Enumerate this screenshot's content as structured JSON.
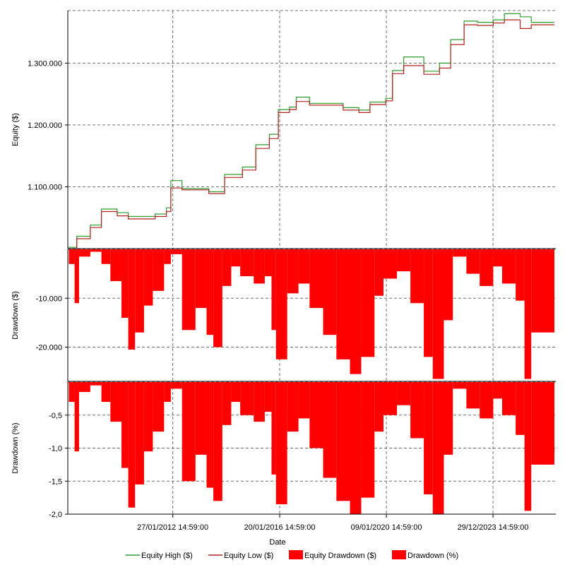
{
  "chart_data": {
    "type": "line",
    "colors": {
      "equity_high": "#2e9b2e",
      "equity_low": "#b22222",
      "drawdown_fill": "#ff0000",
      "grid": "#707070"
    },
    "x_axis": {
      "label": "Date",
      "range": [
        "2008-03-01",
        "2026-05-01"
      ],
      "ticks": [
        {
          "date": "2012-01-27",
          "label": "27/01/2012 14:59:00"
        },
        {
          "date": "2016-01-20",
          "label": "20/01/2016 14:59:00"
        },
        {
          "date": "2020-01-09",
          "label": "09/01/2020 14:59:00"
        },
        {
          "date": "2023-12-29",
          "label": "29/12/2023 14:59:00"
        }
      ]
    },
    "panels": [
      {
        "name": "equity",
        "ylabel": "Equity ($)",
        "ylim": [
          1000000,
          1385000
        ],
        "yticks": [
          {
            "value": 1100000,
            "label": "1.100.000"
          },
          {
            "value": 1200000,
            "label": "1.200.000"
          },
          {
            "value": 1300000,
            "label": "1.300.000"
          }
        ],
        "series": [
          {
            "name": "Equity High ($)",
            "points": [
              [
                "2008-03-10",
                1002000
              ],
              [
                "2008-07-01",
                1020000
              ],
              [
                "2009-01-01",
                1038000
              ],
              [
                "2009-06-01",
                1064000
              ],
              [
                "2010-01-01",
                1058000
              ],
              [
                "2010-06-01",
                1052000
              ],
              [
                "2011-06-01",
                1056000
              ],
              [
                "2011-11-01",
                1066000
              ],
              [
                "2012-01-01",
                1110000
              ],
              [
                "2012-06-01",
                1097000
              ],
              [
                "2013-06-01",
                1092000
              ],
              [
                "2014-01-01",
                1120000
              ],
              [
                "2014-09-01",
                1132000
              ],
              [
                "2015-03-01",
                1168000
              ],
              [
                "2015-09-01",
                1185000
              ],
              [
                "2016-01-01",
                1225000
              ],
              [
                "2016-06-01",
                1229000
              ],
              [
                "2016-09-01",
                1245000
              ],
              [
                "2017-03-01",
                1235000
              ],
              [
                "2018-06-01",
                1228000
              ],
              [
                "2019-01-01",
                1224000
              ],
              [
                "2019-06-01",
                1237000
              ],
              [
                "2020-01-01",
                1243000
              ],
              [
                "2020-04-01",
                1288000
              ],
              [
                "2020-09-01",
                1310000
              ],
              [
                "2021-06-01",
                1287000
              ],
              [
                "2022-01-01",
                1300000
              ],
              [
                "2022-06-01",
                1338000
              ],
              [
                "2022-12-01",
                1368000
              ],
              [
                "2023-06-01",
                1366000
              ],
              [
                "2024-01-01",
                1370000
              ],
              [
                "2024-06-01",
                1380000
              ],
              [
                "2025-01-01",
                1375000
              ],
              [
                "2025-06-01",
                1366000
              ]
            ]
          },
          {
            "name": "Equity Low ($)",
            "points": [
              [
                "2008-03-10",
                1000000
              ],
              [
                "2008-07-01",
                1016000
              ],
              [
                "2009-01-01",
                1034000
              ],
              [
                "2009-06-01",
                1060000
              ],
              [
                "2010-01-01",
                1053000
              ],
              [
                "2010-06-01",
                1048000
              ],
              [
                "2011-06-01",
                1052000
              ],
              [
                "2011-11-01",
                1060000
              ],
              [
                "2012-01-01",
                1098000
              ],
              [
                "2012-06-01",
                1095000
              ],
              [
                "2013-06-01",
                1089000
              ],
              [
                "2014-01-01",
                1115000
              ],
              [
                "2014-09-01",
                1127000
              ],
              [
                "2015-03-01",
                1162000
              ],
              [
                "2015-09-01",
                1178000
              ],
              [
                "2016-01-01",
                1220000
              ],
              [
                "2016-06-01",
                1225000
              ],
              [
                "2016-09-01",
                1238000
              ],
              [
                "2017-03-01",
                1232000
              ],
              [
                "2018-06-01",
                1224000
              ],
              [
                "2019-01-01",
                1220000
              ],
              [
                "2019-06-01",
                1233000
              ],
              [
                "2020-01-01",
                1239000
              ],
              [
                "2020-04-01",
                1283000
              ],
              [
                "2020-09-01",
                1296000
              ],
              [
                "2021-06-01",
                1282000
              ],
              [
                "2022-01-01",
                1292000
              ],
              [
                "2022-06-01",
                1330000
              ],
              [
                "2022-12-01",
                1362000
              ],
              [
                "2023-06-01",
                1361000
              ],
              [
                "2024-01-01",
                1365000
              ],
              [
                "2024-06-01",
                1370000
              ],
              [
                "2025-01-01",
                1356000
              ],
              [
                "2025-06-01",
                1362000
              ]
            ]
          }
        ]
      },
      {
        "name": "drawdown_usd",
        "ylabel": "Drawdown ($)",
        "ylim": [
          -27000,
          0
        ],
        "yticks": [
          {
            "value": -10000,
            "label": "-10.000"
          },
          {
            "value": -20000,
            "label": "-20.000"
          }
        ],
        "series": [
          {
            "name": "Equity Drawdown ($)",
            "points": [
              [
                "2008-03-15",
                -3000
              ],
              [
                "2008-06-01",
                -11000
              ],
              [
                "2008-08-01",
                -1500
              ],
              [
                "2009-01-01",
                -500
              ],
              [
                "2009-06-01",
                -3000
              ],
              [
                "2009-10-01",
                -6500
              ],
              [
                "2010-03-01",
                -14000
              ],
              [
                "2010-06-01",
                -20500
              ],
              [
                "2010-09-01",
                -17000
              ],
              [
                "2011-01-01",
                -11500
              ],
              [
                "2011-05-01",
                -8500
              ],
              [
                "2011-10-01",
                -3000
              ],
              [
                "2012-01-01",
                -1000
              ],
              [
                "2012-06-01",
                -16500
              ],
              [
                "2012-12-01",
                -12000
              ],
              [
                "2013-05-01",
                -17500
              ],
              [
                "2013-08-01",
                -20000
              ],
              [
                "2013-12-01",
                -7500
              ],
              [
                "2014-04-01",
                -3500
              ],
              [
                "2014-08-01",
                -5500
              ],
              [
                "2015-02-01",
                -7000
              ],
              [
                "2015-07-01",
                -5500
              ],
              [
                "2015-10-01",
                -16500
              ],
              [
                "2015-12-01",
                -22500
              ],
              [
                "2016-05-01",
                -9000
              ],
              [
                "2016-10-01",
                -7000
              ],
              [
                "2017-03-01",
                -12000
              ],
              [
                "2017-09-01",
                -17500
              ],
              [
                "2018-03-01",
                -22500
              ],
              [
                "2018-09-01",
                -25500
              ],
              [
                "2019-02-01",
                -22000
              ],
              [
                "2019-08-01",
                -9500
              ],
              [
                "2019-12-01",
                -6000
              ],
              [
                "2020-06-01",
                -4500
              ],
              [
                "2020-12-01",
                -11000
              ],
              [
                "2021-06-01",
                -22000
              ],
              [
                "2021-10-01",
                -26500
              ],
              [
                "2022-03-01",
                -14500
              ],
              [
                "2022-07-01",
                -1500
              ],
              [
                "2023-01-01",
                -5000
              ],
              [
                "2023-07-01",
                -7500
              ],
              [
                "2024-01-01",
                -3500
              ],
              [
                "2024-05-01",
                -7000
              ],
              [
                "2024-11-01",
                -10500
              ],
              [
                "2025-03-01",
                -26500
              ],
              [
                "2025-06-01",
                -17000
              ]
            ]
          }
        ]
      },
      {
        "name": "drawdown_pct",
        "ylabel": "Drawdown (%)",
        "ylim": [
          -2.0,
          0
        ],
        "yticks": [
          {
            "value": -0.5,
            "label": "-0,5"
          },
          {
            "value": -1.0,
            "label": "-1,0"
          },
          {
            "value": -1.5,
            "label": "-1,5"
          },
          {
            "value": -2.0,
            "label": "-2,0"
          }
        ],
        "series": [
          {
            "name": "Drawdown (%)",
            "points": [
              [
                "2008-03-15",
                -0.3
              ],
              [
                "2008-06-01",
                -1.05
              ],
              [
                "2008-08-01",
                -0.15
              ],
              [
                "2009-01-01",
                -0.05
              ],
              [
                "2009-06-01",
                -0.3
              ],
              [
                "2009-10-01",
                -0.6
              ],
              [
                "2010-03-01",
                -1.3
              ],
              [
                "2010-06-01",
                -1.9
              ],
              [
                "2010-09-01",
                -1.55
              ],
              [
                "2011-01-01",
                -1.05
              ],
              [
                "2011-05-01",
                -0.75
              ],
              [
                "2011-10-01",
                -0.3
              ],
              [
                "2012-01-01",
                -0.1
              ],
              [
                "2012-06-01",
                -1.5
              ],
              [
                "2012-12-01",
                -1.1
              ],
              [
                "2013-05-01",
                -1.6
              ],
              [
                "2013-08-01",
                -1.8
              ],
              [
                "2013-12-01",
                -0.65
              ],
              [
                "2014-04-01",
                -0.3
              ],
              [
                "2014-08-01",
                -0.5
              ],
              [
                "2015-02-01",
                -0.6
              ],
              [
                "2015-07-01",
                -0.45
              ],
              [
                "2015-10-01",
                -1.4
              ],
              [
                "2015-12-01",
                -1.85
              ],
              [
                "2016-05-01",
                -0.75
              ],
              [
                "2016-10-01",
                -0.55
              ],
              [
                "2017-03-01",
                -1.0
              ],
              [
                "2017-09-01",
                -1.45
              ],
              [
                "2018-03-01",
                -1.8
              ],
              [
                "2018-09-01",
                -2.0
              ],
              [
                "2019-02-01",
                -1.75
              ],
              [
                "2019-08-01",
                -0.75
              ],
              [
                "2019-12-01",
                -0.5
              ],
              [
                "2020-06-01",
                -0.35
              ],
              [
                "2020-12-01",
                -0.85
              ],
              [
                "2021-06-01",
                -1.7
              ],
              [
                "2021-10-01",
                -2.0
              ],
              [
                "2022-03-01",
                -1.1
              ],
              [
                "2022-07-01",
                -0.1
              ],
              [
                "2023-01-01",
                -0.4
              ],
              [
                "2023-07-01",
                -0.55
              ],
              [
                "2024-01-01",
                -0.25
              ],
              [
                "2024-05-01",
                -0.5
              ],
              [
                "2024-11-01",
                -0.8
              ],
              [
                "2025-03-01",
                -1.95
              ],
              [
                "2025-06-01",
                -1.25
              ]
            ]
          }
        ]
      }
    ],
    "legend": {
      "placement": "bottom",
      "items": [
        {
          "label": "Equity High ($)",
          "kind": "line",
          "color": "#2e9b2e"
        },
        {
          "label": "Equity Low ($)",
          "kind": "line",
          "color": "#b22222"
        },
        {
          "label": "Equity Drawdown ($)",
          "kind": "box",
          "color": "#ff0000"
        },
        {
          "label": "Drawdown (%)",
          "kind": "box",
          "color": "#ff0000"
        }
      ]
    }
  }
}
